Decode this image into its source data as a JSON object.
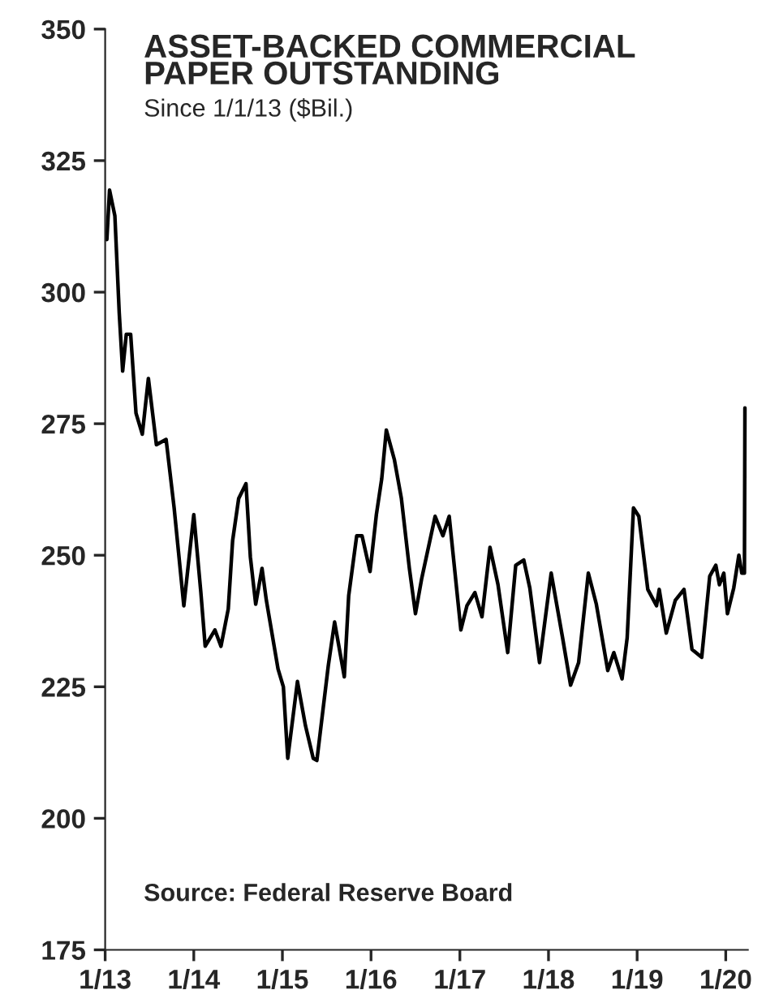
{
  "chart_data": {
    "type": "line",
    "title": "ASSET-BACKED COMMERCIAL\nPAPER OUTSTANDING",
    "subtitle": "Since 1/1/13 ($Bil.)",
    "annotations": [
      "Source: Federal Reserve Board"
    ],
    "x": [
      "2013-01-08",
      "2013-01-19",
      "2013-02-10",
      "2013-02-28",
      "2013-03-14",
      "2013-03-29",
      "2013-04-16",
      "2013-05-08",
      "2013-06-03",
      "2013-06-28",
      "2013-07-31",
      "2013-09-09",
      "2013-10-12",
      "2013-11-21",
      "2014-01-01",
      "2014-01-30",
      "2014-02-17",
      "2014-03-29",
      "2014-04-23",
      "2014-05-23",
      "2014-06-10",
      "2014-07-05",
      "2014-08-04",
      "2014-08-22",
      "2014-09-13",
      "2014-10-09",
      "2014-10-27",
      "2014-12-14",
      "2015-01-05",
      "2015-01-23",
      "2015-03-04",
      "2015-04-06",
      "2015-05-08",
      "2015-05-23",
      "2015-07-09",
      "2015-08-04",
      "2015-09-13",
      "2015-10-01",
      "2015-11-03",
      "2015-11-25",
      "2015-12-28",
      "2016-01-23",
      "2016-02-14",
      "2016-03-04",
      "2016-04-06",
      "2016-05-05",
      "2016-06-07",
      "2016-07-02",
      "2016-07-27",
      "2016-09-21",
      "2016-10-23",
      "2016-11-18",
      "2017-01-05",
      "2017-01-30",
      "2017-03-04",
      "2017-04-02",
      "2017-05-05",
      "2017-06-07",
      "2017-07-17",
      "2017-08-19",
      "2017-09-21",
      "2017-10-16",
      "2017-11-25",
      "2018-01-12",
      "2018-02-28",
      "2018-04-02",
      "2018-05-05",
      "2018-06-14",
      "2018-07-17",
      "2018-09-02",
      "2018-09-27",
      "2018-10-31",
      "2018-11-21",
      "2018-12-17",
      "2019-01-08",
      "2019-02-14",
      "2019-03-22",
      "2019-04-02",
      "2019-05-01",
      "2019-06-07",
      "2019-07-13",
      "2019-08-15",
      "2019-09-24",
      "2019-10-27",
      "2019-11-21",
      "2019-12-06",
      "2019-12-24",
      "2020-01-08",
      "2020-02-03",
      "2020-02-24",
      "2020-03-07",
      "2020-03-18",
      "2020-03-20"
    ],
    "series": [
      {
        "color": "#000000",
        "values": [
          310,
          319.4,
          314.5,
          296,
          285,
          292,
          292,
          277,
          273,
          283.6,
          271,
          272,
          259,
          240.4,
          257.7,
          243,
          232.7,
          235.8,
          232.7,
          239.8,
          252.8,
          260.8,
          263.6,
          249.7,
          240.7,
          247.5,
          241.4,
          228.4,
          225,
          211.4,
          226,
          217.6,
          211.4,
          211,
          229,
          237.3,
          226.9,
          242.3,
          253.7,
          253.7,
          246.9,
          257.7,
          264.5,
          273.8,
          268.2,
          260.8,
          247.5,
          238.9,
          245.4,
          257.4,
          253.7,
          257.4,
          235.8,
          240.4,
          242.9,
          238.3,
          251.5,
          244.4,
          231.5,
          248.1,
          249.1,
          243.8,
          229.6,
          246.6,
          234.3,
          225.3,
          229.6,
          246.6,
          240.7,
          228.1,
          231.5,
          226.5,
          234.3,
          259,
          257.4,
          243.5,
          240.4,
          243.5,
          235.2,
          241.4,
          243.5,
          232.1,
          230.6,
          246,
          248.1,
          244.4,
          246.6,
          238.9,
          243.8,
          250,
          246.6,
          246.6,
          278
        ]
      }
    ],
    "xlim": [
      "2013-01-01",
      "2020-04-01"
    ],
    "xticks": [
      {
        "value": "2013-01-01",
        "label": "1/13"
      },
      {
        "value": "2014-01-01",
        "label": "1/14"
      },
      {
        "value": "2015-01-01",
        "label": "1/15"
      },
      {
        "value": "2016-01-01",
        "label": "1/16"
      },
      {
        "value": "2017-01-01",
        "label": "1/17"
      },
      {
        "value": "2018-01-01",
        "label": "1/18"
      },
      {
        "value": "2019-01-01",
        "label": "1/19"
      },
      {
        "value": "2020-01-01",
        "label": "1/20"
      }
    ],
    "ylim": [
      175,
      350
    ],
    "yticks": [
      175,
      200,
      225,
      250,
      275,
      300,
      325,
      350
    ],
    "grid": false,
    "legend": false
  }
}
